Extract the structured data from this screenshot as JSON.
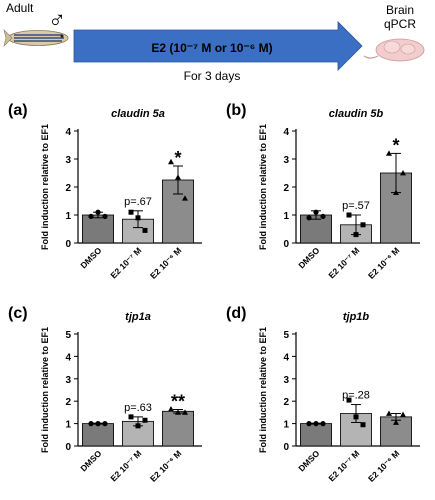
{
  "schematic": {
    "adult_label": "Adult",
    "sex_symbol": "♂",
    "treatment_label": "E2 (10⁻⁷ M or 10⁻⁶ M)",
    "duration_label": "For 3 days",
    "outcome_label_line1": "Brain",
    "outcome_label_line2": "qPCR",
    "arrow_color": "#3a6fc4",
    "fish_icon": "zebrafish-icon",
    "brain_icon": "brain-icon"
  },
  "colors": {
    "dmso_bar": "#7a7a7a",
    "low_dose_bar": "#b4b4b4",
    "high_dose_bar": "#8c8c8c"
  },
  "chart_data": [
    {
      "panel": "(a)",
      "type": "bar",
      "title": "claudin 5a",
      "ylabel": "Fold induction relative to EF1",
      "categories": [
        "DMSO",
        "E2 10⁻⁷ M",
        "E2 10⁻⁶ M"
      ],
      "values": [
        1.0,
        0.85,
        2.25
      ],
      "errors": [
        0.1,
        0.3,
        0.5
      ],
      "points": [
        [
          0.95,
          1.1,
          0.95
        ],
        [
          1.1,
          0.9,
          0.45
        ],
        [
          2.9,
          2.35,
          1.6
        ]
      ],
      "point_markers": [
        "circle",
        "square",
        "triangle"
      ],
      "annotations": [
        "",
        "p=.67",
        "*"
      ],
      "ylim": [
        0,
        4
      ],
      "yticks": [
        0,
        1,
        2,
        3,
        4
      ]
    },
    {
      "panel": "(b)",
      "type": "bar",
      "title": "claudin 5b",
      "ylabel": "Fold induction relative to EF1",
      "categories": [
        "DMSO",
        "E2 10⁻⁷ M",
        "E2 10⁻⁶ M"
      ],
      "values": [
        1.0,
        0.65,
        2.5
      ],
      "errors": [
        0.15,
        0.35,
        0.7
      ],
      "points": [
        [
          0.9,
          1.1,
          0.95
        ],
        [
          1.0,
          0.3,
          0.65
        ],
        [
          3.2,
          1.8,
          2.5
        ]
      ],
      "point_markers": [
        "circle",
        "square",
        "triangle"
      ],
      "annotations": [
        "",
        "p=.57",
        "*"
      ],
      "ylim": [
        0,
        4
      ],
      "yticks": [
        0,
        1,
        2,
        3,
        4
      ]
    },
    {
      "panel": "(c)",
      "type": "bar",
      "title": "tjp1a",
      "ylabel": "Fold induction relative to EF1",
      "categories": [
        "DMSO",
        "E2 10⁻⁷ M",
        "E2 10⁻⁶ M"
      ],
      "values": [
        1.0,
        1.1,
        1.55
      ],
      "errors": [
        0.02,
        0.2,
        0.08
      ],
      "points": [
        [
          1.0,
          1.0,
          1.0
        ],
        [
          1.3,
          0.9,
          1.15
        ],
        [
          1.65,
          1.5,
          1.5
        ]
      ],
      "point_markers": [
        "circle",
        "square",
        "triangle"
      ],
      "annotations": [
        "",
        "p=.63",
        "**"
      ],
      "ylim": [
        0,
        5
      ],
      "yticks": [
        0,
        1,
        2,
        3,
        4,
        5
      ]
    },
    {
      "panel": "(d)",
      "type": "bar",
      "title": "tjp1b",
      "ylabel": "Fold induction relative to EF1",
      "categories": [
        "DMSO",
        "E2 10⁻⁷ M",
        "E2 10⁻⁶ M"
      ],
      "values": [
        1.0,
        1.45,
        1.3
      ],
      "errors": [
        0.02,
        0.4,
        0.15
      ],
      "points": [
        [
          1.0,
          1.0,
          1.0
        ],
        [
          2.05,
          1.3,
          0.95
        ],
        [
          1.45,
          1.05,
          1.4
        ]
      ],
      "point_markers": [
        "circle",
        "square",
        "triangle"
      ],
      "annotations": [
        "",
        "p=.28",
        ""
      ],
      "ylim": [
        0,
        5
      ],
      "yticks": [
        0,
        1,
        2,
        3,
        4,
        5
      ]
    }
  ]
}
